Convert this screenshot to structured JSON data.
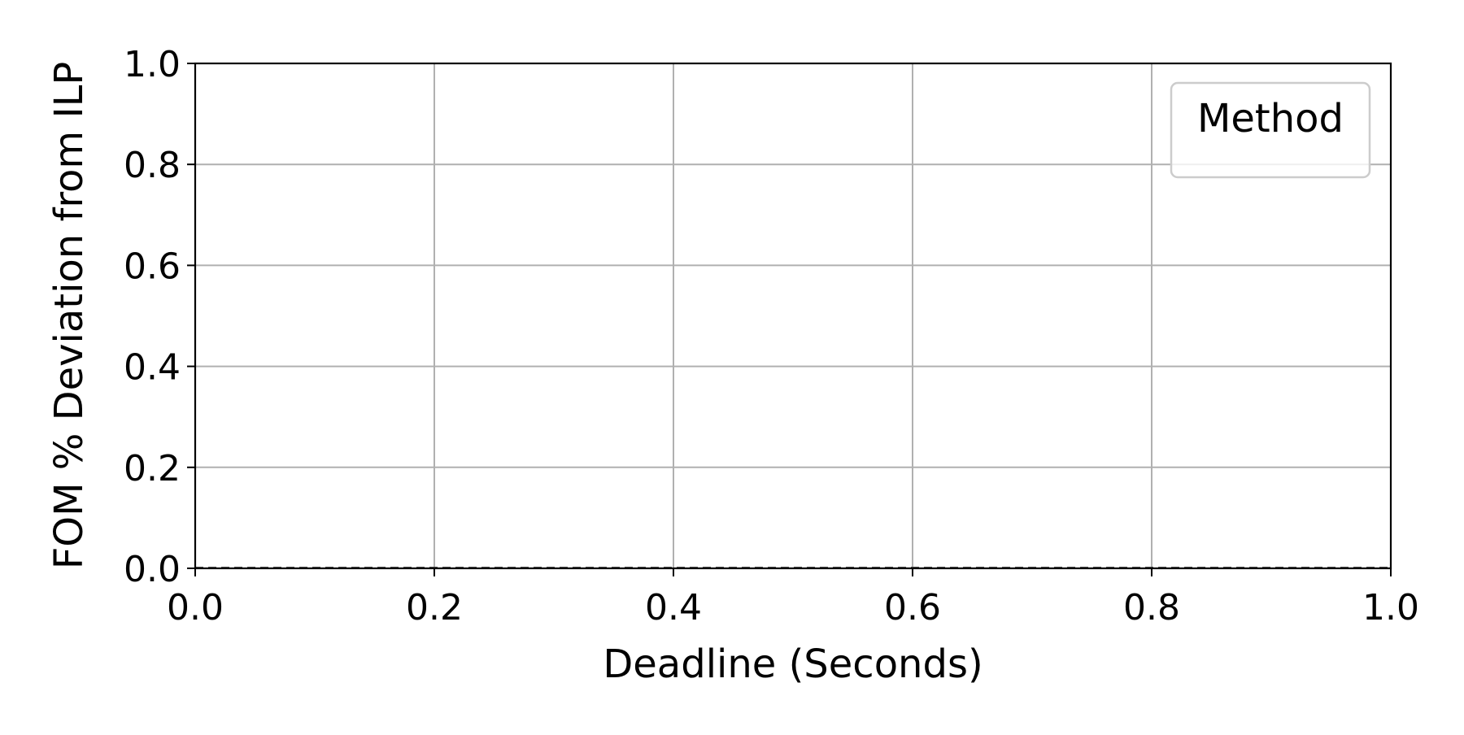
{
  "chart_data": {
    "type": "line",
    "title": "",
    "xlabel": "Deadline (Seconds)",
    "ylabel": "FOM % Deviation from ILP",
    "xlim": [
      0.0,
      1.0
    ],
    "ylim": [
      0.0,
      1.0
    ],
    "xticks": [
      "0.0",
      "0.2",
      "0.4",
      "0.6",
      "0.8",
      "1.0"
    ],
    "yticks": [
      "0.0",
      "0.2",
      "0.4",
      "0.6",
      "0.8",
      "1.0"
    ],
    "grid": true,
    "legend": {
      "title": "Method",
      "placement": "top-right",
      "entries": []
    },
    "series": [],
    "reference_lines": [
      {
        "axis": "y",
        "value": 0.0,
        "style": "dashed",
        "color": "#555555"
      }
    ]
  }
}
